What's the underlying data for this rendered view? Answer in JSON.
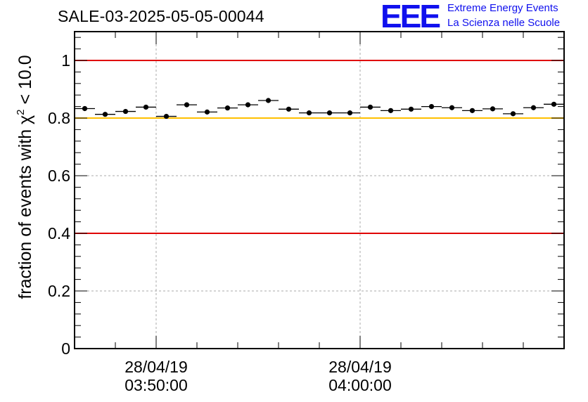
{
  "title": "SALE-03-2025-05-05-00044",
  "logo": {
    "mark": "EEE",
    "line1": "Extreme Energy Events",
    "line2": "La Scienza nelle Scuole",
    "color": "#1010ee"
  },
  "chart_data": {
    "type": "scatter",
    "title": "SALE-03-2025-05-05-00044",
    "ylabel": {
      "prefix": "fraction of events with ",
      "symbol": "χ",
      "power": "2",
      "suffix": " < 10.0"
    },
    "ylim": [
      0,
      1.1
    ],
    "yticks": [
      0,
      0.2,
      0.4,
      0.6,
      0.8,
      1
    ],
    "ytick_labels": [
      "0",
      "0.2",
      "0.4",
      "0.6",
      "0.8",
      "1"
    ],
    "xlim_minutes": [
      -4,
      20
    ],
    "x_major_ticks": [
      {
        "minute": 0,
        "date": "28/04/19",
        "time": "03:50:00"
      },
      {
        "minute": 10,
        "date": "28/04/19",
        "time": "04:00:00"
      }
    ],
    "x_minor_tick_step_minutes": 2,
    "grid": true,
    "reference_lines": [
      {
        "y": 1.0,
        "color": "#e00000"
      },
      {
        "y": 0.8,
        "color": "#ffc000"
      },
      {
        "y": 0.4,
        "color": "#e00000"
      }
    ],
    "points": [
      {
        "x": -3.5,
        "y": 0.833
      },
      {
        "x": -2.5,
        "y": 0.813
      },
      {
        "x": -1.5,
        "y": 0.823
      },
      {
        "x": -0.5,
        "y": 0.838
      },
      {
        "x": 0.5,
        "y": 0.806
      },
      {
        "x": 1.5,
        "y": 0.846
      },
      {
        "x": 2.5,
        "y": 0.821
      },
      {
        "x": 3.5,
        "y": 0.835
      },
      {
        "x": 4.5,
        "y": 0.846
      },
      {
        "x": 5.5,
        "y": 0.861
      },
      {
        "x": 6.5,
        "y": 0.831
      },
      {
        "x": 7.5,
        "y": 0.818
      },
      {
        "x": 8.5,
        "y": 0.818
      },
      {
        "x": 9.5,
        "y": 0.818
      },
      {
        "x": 10.5,
        "y": 0.838
      },
      {
        "x": 11.5,
        "y": 0.826
      },
      {
        "x": 12.5,
        "y": 0.831
      },
      {
        "x": 13.5,
        "y": 0.84
      },
      {
        "x": 14.5,
        "y": 0.836
      },
      {
        "x": 15.5,
        "y": 0.826
      },
      {
        "x": 16.5,
        "y": 0.832
      },
      {
        "x": 17.5,
        "y": 0.815
      },
      {
        "x": 18.5,
        "y": 0.836
      },
      {
        "x": 19.5,
        "y": 0.848
      }
    ],
    "x_error_minutes": 0.5,
    "y_error": 0.004
  }
}
